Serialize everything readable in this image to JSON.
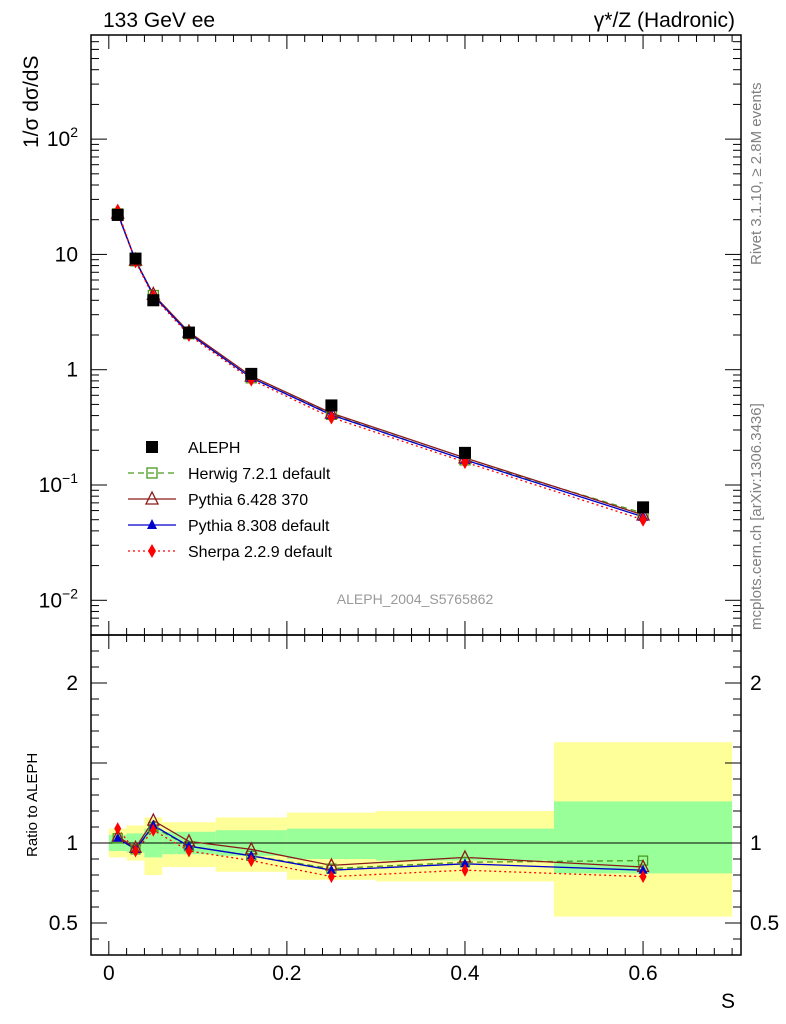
{
  "header": {
    "left": "133 GeV ee",
    "right": "γ*/Z (Hadronic)"
  },
  "side_labels": {
    "rivet": "Rivet 3.1.10, ≥ 2.8M events",
    "mcplots": "mcplots.cern.ch [arXiv:1306.3436]"
  },
  "analysis_id": "ALEPH_2004_S5765862",
  "colors": {
    "aleph": "#000000",
    "herwig": "#4a9a1e",
    "pythia6": "#8b1a1a",
    "pythia8": "#0000cc",
    "sherpa": "#ff0000",
    "band_inner": "#99ff99",
    "band_outer": "#ffff99"
  },
  "chart_data": [
    {
      "type": "scatter",
      "panel": "main",
      "ylabel": "1/σ  dσ/dS",
      "xlabel": "",
      "yscale": "log",
      "xlim": [
        -0.02,
        0.71
      ],
      "ylim": [
        0.005,
        800
      ],
      "y_ticks": [
        {
          "value": 0.01,
          "base": "10",
          "exp": "−2"
        },
        {
          "value": 0.1,
          "base": "10",
          "exp": "−1"
        },
        {
          "value": 1,
          "base": "1",
          "exp": ""
        },
        {
          "value": 10,
          "base": "10",
          "exp": ""
        },
        {
          "value": 100,
          "base": "10",
          "exp": "2"
        }
      ],
      "x": [
        0.01,
        0.03,
        0.05,
        0.09,
        0.16,
        0.25,
        0.4,
        0.6
      ],
      "legend_position": "bottom-left",
      "series": [
        {
          "name": "ALEPH",
          "key": "aleph",
          "style": "data",
          "marker": "square",
          "values": [
            22.0,
            9.2,
            4.0,
            2.1,
            0.92,
            0.49,
            0.19,
            0.064
          ]
        },
        {
          "name": "Herwig 7.2.1 default",
          "key": "herwig",
          "style": "dashed",
          "marker": "open-square",
          "values": [
            22.5,
            8.8,
            4.4,
            2.05,
            0.85,
            0.41,
            0.165,
            0.057
          ]
        },
        {
          "name": "Pythia 6.428 370",
          "key": "pythia6",
          "style": "solid",
          "marker": "open-triangle",
          "values": [
            22.8,
            8.9,
            4.5,
            2.12,
            0.88,
            0.42,
            0.172,
            0.055
          ]
        },
        {
          "name": "Pythia 8.308 default",
          "key": "pythia8",
          "style": "solid",
          "marker": "filled-triangle",
          "values": [
            22.6,
            8.85,
            4.4,
            2.06,
            0.85,
            0.405,
            0.165,
            0.053
          ]
        },
        {
          "name": "Sherpa 2.2.9 default",
          "key": "sherpa",
          "style": "dotted",
          "marker": "diamond",
          "values": [
            24.0,
            8.7,
            4.3,
            2.0,
            0.82,
            0.385,
            0.158,
            0.05
          ]
        }
      ]
    },
    {
      "type": "line",
      "panel": "ratio",
      "ylabel": "Ratio to ALEPH",
      "xlabel": "S",
      "xlim": [
        -0.02,
        0.71
      ],
      "ylim": [
        0.3,
        2.3
      ],
      "x_ticks": [
        "0",
        "0.2",
        "0.4",
        "0.6"
      ],
      "y_ticks": [
        "0.5",
        "1",
        "2"
      ],
      "bins": [
        {
          "lo": 0.0,
          "hi": 0.02,
          "inner": [
            0.95,
            1.05
          ],
          "outer": [
            0.91,
            1.09
          ]
        },
        {
          "lo": 0.02,
          "hi": 0.04,
          "inner": [
            0.94,
            1.06
          ],
          "outer": [
            0.89,
            1.11
          ]
        },
        {
          "lo": 0.04,
          "hi": 0.06,
          "inner": [
            0.91,
            1.09
          ],
          "outer": [
            0.8,
            1.16
          ]
        },
        {
          "lo": 0.06,
          "hi": 0.12,
          "inner": [
            0.93,
            1.07
          ],
          "outer": [
            0.85,
            1.13
          ]
        },
        {
          "lo": 0.12,
          "hi": 0.2,
          "inner": [
            0.92,
            1.08
          ],
          "outer": [
            0.82,
            1.16
          ]
        },
        {
          "lo": 0.2,
          "hi": 0.3,
          "inner": [
            0.9,
            1.09
          ],
          "outer": [
            0.77,
            1.19
          ]
        },
        {
          "lo": 0.3,
          "hi": 0.5,
          "inner": [
            0.89,
            1.09
          ],
          "outer": [
            0.76,
            1.2
          ]
        },
        {
          "lo": 0.5,
          "hi": 0.7,
          "inner": [
            0.81,
            1.26
          ],
          "outer": [
            0.54,
            1.63
          ]
        }
      ],
      "series": [
        {
          "key": "herwig",
          "style": "dashed",
          "marker": "open-square",
          "values": [
            1.03,
            0.96,
            1.1,
            0.98,
            0.92,
            0.84,
            0.88,
            0.89
          ]
        },
        {
          "key": "pythia6",
          "style": "solid",
          "marker": "open-triangle",
          "values": [
            1.04,
            0.97,
            1.14,
            1.01,
            0.96,
            0.86,
            0.91,
            0.85
          ]
        },
        {
          "key": "pythia8",
          "style": "solid",
          "marker": "filled-triangle",
          "values": [
            1.03,
            0.96,
            1.11,
            0.98,
            0.92,
            0.83,
            0.87,
            0.83
          ]
        },
        {
          "key": "sherpa",
          "style": "dotted",
          "marker": "diamond",
          "values": [
            1.09,
            0.95,
            1.08,
            0.95,
            0.89,
            0.79,
            0.83,
            0.79
          ]
        }
      ]
    }
  ]
}
